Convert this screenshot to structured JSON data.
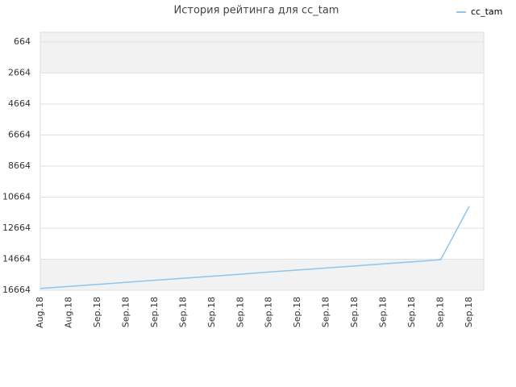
{
  "chart_data": {
    "type": "line",
    "title": "История рейтинга для cc_tam",
    "categories": [
      "Aug.18",
      "Aug.18",
      "Sep.18",
      "Sep.18",
      "Sep.18",
      "Sep.18",
      "Sep.18",
      "Sep.18",
      "Sep.18",
      "Sep.18",
      "Sep.18",
      "Sep.18",
      "Sep.18",
      "Sep.18",
      "Sep.18",
      "Sep.18"
    ],
    "series": [
      {
        "name": "cc_tam",
        "color": "#8ec4ee",
        "values": [
          16550,
          16420,
          16290,
          16150,
          16020,
          15890,
          15760,
          15630,
          15490,
          15360,
          15230,
          15100,
          14960,
          14830,
          14700,
          11250
        ]
      }
    ],
    "ylim": [
      16664,
      40
    ],
    "yticks": [
      664,
      2664,
      4664,
      6664,
      8664,
      10664,
      12664,
      14664,
      16664
    ],
    "grid": true,
    "legend": "top-right"
  }
}
